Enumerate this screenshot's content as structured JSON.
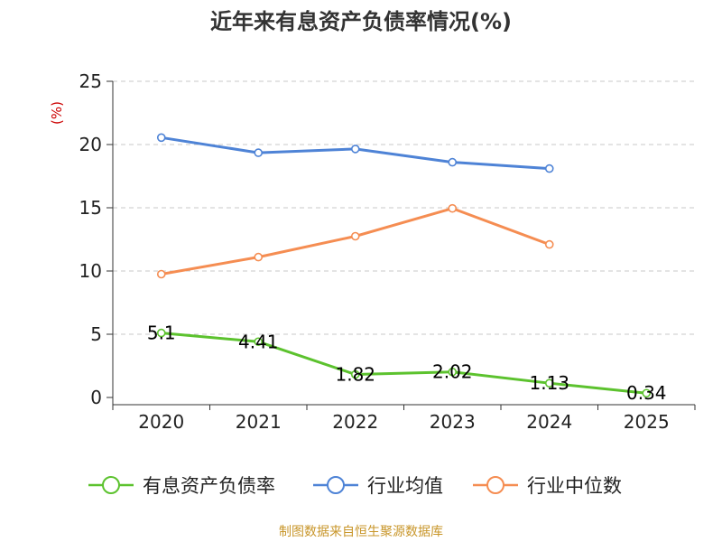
{
  "chart_data": {
    "type": "line",
    "title": "近年来有息资产负债率情况(%)",
    "ylabel": "(%)",
    "xlabel": "",
    "categories": [
      "2020",
      "2021",
      "2022",
      "2023",
      "2024",
      "2025"
    ],
    "ylim": [
      0,
      25
    ],
    "yticks": [
      0,
      5,
      10,
      15,
      20,
      25
    ],
    "grid": true,
    "legend_position": "bottom",
    "series": [
      {
        "name": "有息资产负债率",
        "color": "#5cc22e",
        "values": [
          5.1,
          4.41,
          1.82,
          2.02,
          1.13,
          0.34
        ],
        "labels": [
          "5.1",
          "4.41",
          "1.82",
          "2.02",
          "1.13",
          "0.34"
        ]
      },
      {
        "name": "行业均值",
        "color": "#4e83d6",
        "values": [
          20.55,
          19.35,
          19.65,
          18.6,
          18.1,
          null
        ]
      },
      {
        "name": "行业中位数",
        "color": "#f58d52",
        "values": [
          9.75,
          11.1,
          12.75,
          14.95,
          12.1,
          null
        ]
      }
    ]
  },
  "source": "制图数据来自恒生聚源数据库"
}
